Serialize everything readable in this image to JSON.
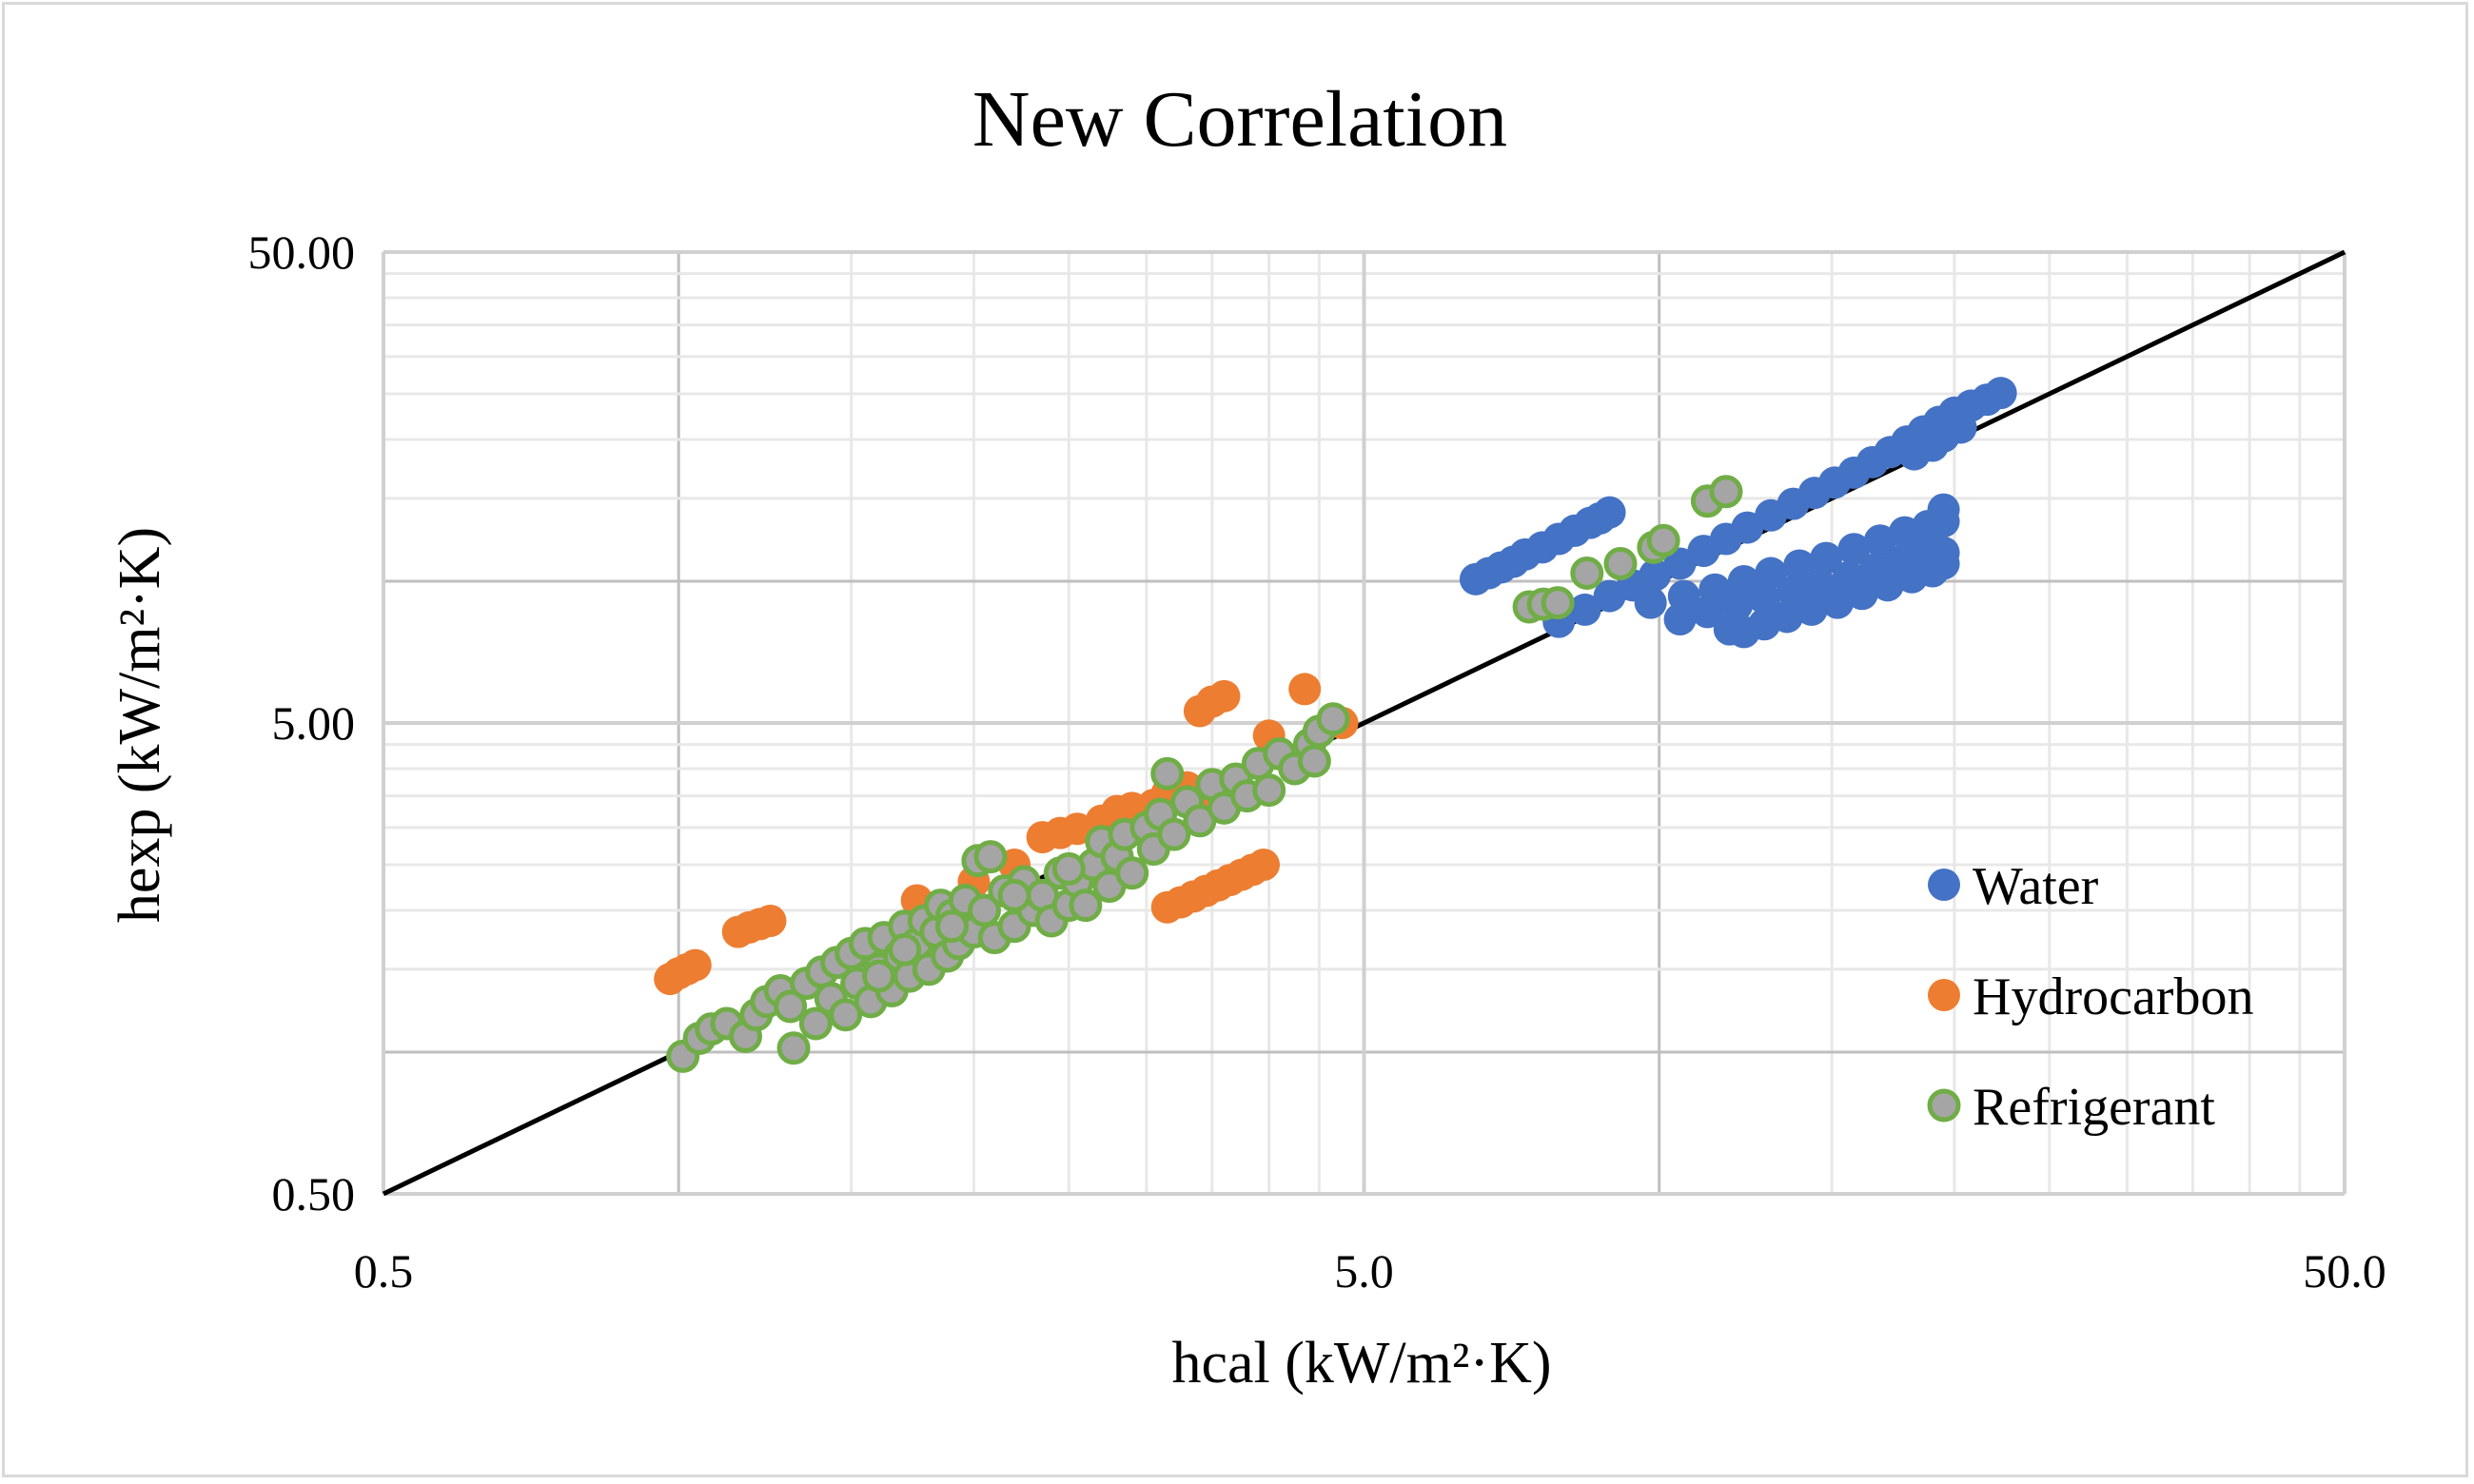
{
  "chart_data": {
    "type": "scatter",
    "title": "New Correlation",
    "xlabel": "hcal (kW/m²·K)",
    "ylabel": "hexp (kW/m²·K)",
    "xscale": "log",
    "yscale": "log",
    "xlim": [
      0.5,
      50
    ],
    "ylim": [
      0.5,
      50
    ],
    "x_ticks": [
      {
        "value": 0.5,
        "label": "0.5"
      },
      {
        "value": 5,
        "label": "5.0"
      },
      {
        "value": 50,
        "label": "50.0"
      }
    ],
    "y_ticks": [
      {
        "value": 0.5,
        "label": "0.50"
      },
      {
        "value": 5,
        "label": "5.00"
      },
      {
        "value": 50,
        "label": "50.00"
      }
    ],
    "grid": true,
    "legend_position": "right-inside-bottom",
    "reference_line": {
      "name": "y = x",
      "from": [
        0.5,
        0.5
      ],
      "to": [
        50,
        50
      ],
      "color": "#000000"
    },
    "series": [
      {
        "name": "Water",
        "marker_fill": "#4472c4",
        "marker_edge": "#4472c4",
        "points": [
          [
            6.5,
            10.1
          ],
          [
            6.7,
            10.4
          ],
          [
            6.9,
            10.7
          ],
          [
            7.1,
            11.0
          ],
          [
            7.3,
            11.4
          ],
          [
            7.6,
            11.8
          ],
          [
            7.9,
            12.3
          ],
          [
            8.2,
            12.8
          ],
          [
            8.5,
            13.3
          ],
          [
            8.9,
            14.0
          ],
          [
            8.7,
            13.6
          ],
          [
            7.9,
            8.2
          ],
          [
            8.4,
            8.7
          ],
          [
            8.9,
            9.3
          ],
          [
            9.4,
            9.8
          ],
          [
            9.9,
            10.3
          ],
          [
            10.5,
            10.9
          ],
          [
            11.1,
            11.6
          ],
          [
            11.7,
            12.3
          ],
          [
            12.3,
            13.0
          ],
          [
            13.0,
            13.8
          ],
          [
            13.7,
            14.6
          ],
          [
            14.4,
            15.4
          ],
          [
            15.1,
            16.2
          ],
          [
            15.8,
            17.0
          ],
          [
            16.5,
            17.9
          ],
          [
            17.2,
            18.8
          ],
          [
            17.9,
            19.8
          ],
          [
            18.6,
            20.8
          ],
          [
            19.3,
            21.8
          ],
          [
            20.0,
            22.8
          ],
          [
            20.8,
            23.6
          ],
          [
            21.6,
            24.3
          ],
          [
            22.3,
            25.1
          ],
          [
            19.0,
            19.4
          ],
          [
            19.5,
            20.3
          ],
          [
            18.2,
            18.6
          ],
          [
            20.3,
            21.2
          ],
          [
            9.8,
            9.0
          ],
          [
            10.6,
            9.3
          ],
          [
            11.4,
            9.6
          ],
          [
            12.2,
            10.0
          ],
          [
            13.0,
            10.4
          ],
          [
            13.9,
            10.8
          ],
          [
            14.8,
            11.2
          ],
          [
            15.8,
            11.7
          ],
          [
            16.8,
            12.2
          ],
          [
            17.8,
            12.7
          ],
          [
            18.8,
            13.1
          ],
          [
            19.5,
            13.4
          ],
          [
            19.5,
            14.2
          ],
          [
            10.5,
            8.3
          ],
          [
            11.2,
            8.6
          ],
          [
            12.0,
            8.9
          ],
          [
            12.8,
            9.2
          ],
          [
            13.7,
            9.5
          ],
          [
            14.6,
            9.8
          ],
          [
            15.6,
            10.2
          ],
          [
            16.6,
            10.6
          ],
          [
            17.6,
            11.0
          ],
          [
            18.6,
            11.4
          ],
          [
            19.5,
            11.5
          ],
          [
            11.8,
            7.9
          ],
          [
            12.2,
            7.8
          ],
          [
            12.8,
            8.1
          ],
          [
            13.5,
            8.4
          ],
          [
            14.3,
            8.7
          ],
          [
            15.2,
            9.0
          ],
          [
            16.1,
            9.4
          ],
          [
            17.1,
            9.8
          ],
          [
            18.1,
            10.2
          ],
          [
            19.0,
            10.5
          ],
          [
            19.5,
            10.9
          ]
        ]
      },
      {
        "name": "Hydrocarbon",
        "marker_fill": "#ed7d31",
        "marker_edge": "#ed7d31",
        "points": [
          [
            0.98,
            1.43
          ],
          [
            1.0,
            1.47
          ],
          [
            1.02,
            1.5
          ],
          [
            1.04,
            1.53
          ],
          [
            1.15,
            1.8
          ],
          [
            1.18,
            1.84
          ],
          [
            1.21,
            1.87
          ],
          [
            1.24,
            1.9
          ],
          [
            2.35,
            2.86
          ],
          [
            2.45,
            2.92
          ],
          [
            2.55,
            2.98
          ],
          [
            2.7,
            3.1
          ],
          [
            2.8,
            3.25
          ],
          [
            2.9,
            3.3
          ],
          [
            3.05,
            3.35
          ],
          [
            3.15,
            3.55
          ],
          [
            3.3,
            3.65
          ],
          [
            3.45,
            3.45
          ],
          [
            3.55,
            3.55
          ],
          [
            3.65,
            3.45
          ],
          [
            3.4,
            5.3
          ],
          [
            3.5,
            5.55
          ],
          [
            3.6,
            5.7
          ],
          [
            4.35,
            5.9
          ],
          [
            4.75,
            5.0
          ],
          [
            4.0,
            4.7
          ],
          [
            3.15,
            2.03
          ],
          [
            3.25,
            2.08
          ],
          [
            3.35,
            2.14
          ],
          [
            3.45,
            2.2
          ],
          [
            3.55,
            2.26
          ],
          [
            3.65,
            2.32
          ],
          [
            3.75,
            2.38
          ],
          [
            3.85,
            2.44
          ],
          [
            3.95,
            2.5
          ],
          [
            2.0,
            2.3
          ],
          [
            2.2,
            2.5
          ],
          [
            1.75,
            2.1
          ]
        ]
      },
      {
        "name": "Refrigerant",
        "marker_fill": "#a5a5a5",
        "marker_edge": "#70ad47",
        "points": [
          [
            1.01,
            0.98
          ],
          [
            1.05,
            1.07
          ],
          [
            1.08,
            1.12
          ],
          [
            1.12,
            1.15
          ],
          [
            1.17,
            1.08
          ],
          [
            1.2,
            1.2
          ],
          [
            1.23,
            1.28
          ],
          [
            1.27,
            1.35
          ],
          [
            1.3,
            1.25
          ],
          [
            1.31,
            1.02
          ],
          [
            1.35,
            1.4
          ],
          [
            1.38,
            1.15
          ],
          [
            1.4,
            1.48
          ],
          [
            1.43,
            1.3
          ],
          [
            1.45,
            1.55
          ],
          [
            1.48,
            1.2
          ],
          [
            1.5,
            1.62
          ],
          [
            1.52,
            1.4
          ],
          [
            1.55,
            1.7
          ],
          [
            1.57,
            1.28
          ],
          [
            1.6,
            1.5
          ],
          [
            1.62,
            1.75
          ],
          [
            1.65,
            1.35
          ],
          [
            1.68,
            1.6
          ],
          [
            1.7,
            1.85
          ],
          [
            1.72,
            1.45
          ],
          [
            1.75,
            1.7
          ],
          [
            1.78,
            1.9
          ],
          [
            1.8,
            1.5
          ],
          [
            1.83,
            1.8
          ],
          [
            1.85,
            2.05
          ],
          [
            1.88,
            1.6
          ],
          [
            1.9,
            1.95
          ],
          [
            1.93,
            1.7
          ],
          [
            1.96,
            2.1
          ],
          [
            2.0,
            1.8
          ],
          [
            2.02,
            2.55
          ],
          [
            2.05,
            2.0
          ],
          [
            2.08,
            2.6
          ],
          [
            2.1,
            1.75
          ],
          [
            2.15,
            2.2
          ],
          [
            2.2,
            1.85
          ],
          [
            2.25,
            2.3
          ],
          [
            2.3,
            2.0
          ],
          [
            2.35,
            2.15
          ],
          [
            2.4,
            1.9
          ],
          [
            2.45,
            2.4
          ],
          [
            2.5,
            2.05
          ],
          [
            2.55,
            2.3
          ],
          [
            2.6,
            2.05
          ],
          [
            2.65,
            2.5
          ],
          [
            2.7,
            2.8
          ],
          [
            2.75,
            2.25
          ],
          [
            2.8,
            2.6
          ],
          [
            2.85,
            2.9
          ],
          [
            2.9,
            2.4
          ],
          [
            3.0,
            3.0
          ],
          [
            3.05,
            2.7
          ],
          [
            3.1,
            3.2
          ],
          [
            3.15,
            3.9
          ],
          [
            3.2,
            2.9
          ],
          [
            3.3,
            3.4
          ],
          [
            3.4,
            3.1
          ],
          [
            3.5,
            3.7
          ],
          [
            3.6,
            3.3
          ],
          [
            3.7,
            3.8
          ],
          [
            3.8,
            3.5
          ],
          [
            3.9,
            4.1
          ],
          [
            4.0,
            3.6
          ],
          [
            4.1,
            4.3
          ],
          [
            4.25,
            4.0
          ],
          [
            4.4,
            4.5
          ],
          [
            4.5,
            4.8
          ],
          [
            4.65,
            5.1
          ],
          [
            4.45,
            4.15
          ],
          [
            1.6,
            1.45
          ],
          [
            1.7,
            1.65
          ],
          [
            1.9,
            1.85
          ],
          [
            2.2,
            2.15
          ],
          [
            2.5,
            2.45
          ],
          [
            7.37,
            8.82
          ],
          [
            7.62,
            8.94
          ],
          [
            7.88,
            9.0
          ],
          [
            8.44,
            10.4
          ],
          [
            9.13,
            10.9
          ],
          [
            9.87,
            11.8
          ],
          [
            10.1,
            12.2
          ],
          [
            11.2,
            14.8
          ],
          [
            11.7,
            15.5
          ]
        ]
      }
    ]
  }
}
